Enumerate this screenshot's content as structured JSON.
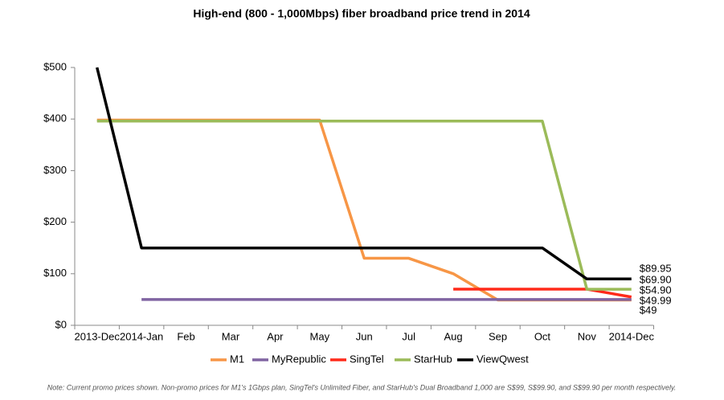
{
  "chart_data": {
    "type": "line",
    "title": "High-end (800 - 1,000Mbps) fiber broadband price trend in 2014",
    "note": "Note: Current promo prices shown. Non-promo prices for M1's 1Gbps plan, SingTel's Unlimited Fiber, and StarHub's Dual Broadband 1,000 are S$99, S$99.90, and S$99.90 per month respectively.",
    "categories": [
      "2013-Dec",
      "2014-Jan",
      "Feb",
      "Mar",
      "Apr",
      "May",
      "Jun",
      "Jul",
      "Aug",
      "Sep",
      "Oct",
      "Nov",
      "2014-Dec"
    ],
    "ylim": [
      0,
      500
    ],
    "yticks": [
      {
        "value": 0,
        "label": "$0"
      },
      {
        "value": 100,
        "label": "$100"
      },
      {
        "value": 200,
        "label": "$200"
      },
      {
        "value": 300,
        "label": "$300"
      },
      {
        "value": 400,
        "label": "$400"
      },
      {
        "value": 500,
        "label": "$500"
      }
    ],
    "grid": false,
    "legend": "bottom",
    "series": [
      {
        "name": "M1",
        "color": "#f79646",
        "values": [
          398,
          398,
          398,
          398,
          398,
          398,
          130,
          130,
          100,
          49,
          49,
          49,
          49
        ],
        "value_labels": [
          null,
          null,
          null,
          null,
          null,
          null,
          null,
          null,
          null,
          null,
          null,
          null,
          "$49"
        ]
      },
      {
        "name": "MyRepublic",
        "color": "#8064a2",
        "values": [
          null,
          49.99,
          49.99,
          49.99,
          49.99,
          49.99,
          49.99,
          49.99,
          49.99,
          49.99,
          49.99,
          49.99,
          49.99
        ],
        "value_labels": [
          null,
          null,
          null,
          null,
          null,
          null,
          null,
          null,
          null,
          null,
          null,
          null,
          "$49.99"
        ]
      },
      {
        "name": "SingTel",
        "color": "#ff2a1a",
        "values": [
          null,
          null,
          null,
          null,
          null,
          null,
          null,
          null,
          70,
          70,
          70,
          70,
          54.9
        ],
        "value_labels": [
          null,
          null,
          null,
          null,
          null,
          null,
          null,
          null,
          null,
          null,
          null,
          null,
          "$54.90"
        ]
      },
      {
        "name": "StarHub",
        "color": "#9bbb59",
        "values": [
          396,
          396,
          396,
          396,
          396,
          396,
          396,
          396,
          396,
          396,
          396,
          69.9,
          69.9
        ],
        "value_labels": [
          null,
          null,
          null,
          null,
          null,
          null,
          null,
          null,
          null,
          null,
          null,
          null,
          "$69.90"
        ]
      },
      {
        "name": "ViewQwest",
        "color": "#000000",
        "values": [
          500,
          150,
          150,
          150,
          150,
          150,
          150,
          150,
          150,
          150,
          150,
          89.95,
          89.95
        ],
        "value_labels": [
          null,
          null,
          null,
          null,
          null,
          null,
          null,
          null,
          null,
          null,
          null,
          null,
          "$89.95"
        ]
      }
    ]
  }
}
